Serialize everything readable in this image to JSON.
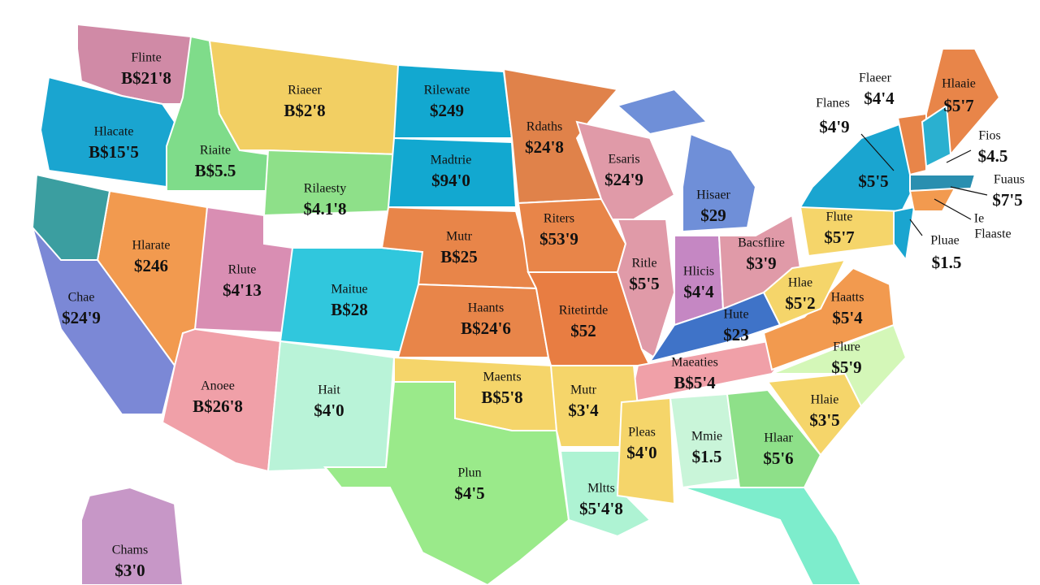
{
  "states": [
    {
      "name": "Flinte",
      "value": "B$21'8"
    },
    {
      "name": "Hlacate",
      "value": "B$15'5"
    },
    {
      "name": "Riaite",
      "value": "B$5.5"
    },
    {
      "name": "Riaeer",
      "value": "B$2'8"
    },
    {
      "name": "Rilaesty",
      "value": "$4.1'8"
    },
    {
      "name": "Rilewate",
      "value": "$249"
    },
    {
      "name": "Madtrie",
      "value": "$94'0"
    },
    {
      "name": "Rdaths",
      "value": "$24'8"
    },
    {
      "name": "Esaris",
      "value": "$24'9"
    },
    {
      "name": "Hisaer",
      "value": "$29"
    },
    {
      "name": "Hlarate",
      "value": "$246"
    },
    {
      "name": "Chae",
      "value": "$24'9"
    },
    {
      "name": "Rlute",
      "value": "$4'13"
    },
    {
      "name": "Maitue",
      "value": "B$28"
    },
    {
      "name": "Mutr",
      "value": "B$25"
    },
    {
      "name": "Riters",
      "value": "$53'9"
    },
    {
      "name": "Haants",
      "value": "B$24'6"
    },
    {
      "name": "Ritetirtde",
      "value": "$52"
    },
    {
      "name": "Ritle",
      "value": "$5'5"
    },
    {
      "name": "Hlicis",
      "value": "$4'4"
    },
    {
      "name": "Bacsflire",
      "value": "$3'9"
    },
    {
      "name": "Hute",
      "value": "$23"
    },
    {
      "name": "Anoee",
      "value": "B$26'8"
    },
    {
      "name": "Hait",
      "value": "$4'0"
    },
    {
      "name": "Maents",
      "value": "B$5'8"
    },
    {
      "name": "Mutr",
      "value": "$3'4"
    },
    {
      "name": "Maeaties",
      "value": "B$5'4"
    },
    {
      "name": "Pleas",
      "value": "$4'0"
    },
    {
      "name": "Mmie",
      "value": "$1.5"
    },
    {
      "name": "Hlaar",
      "value": "$5'6"
    },
    {
      "name": "Hlaie",
      "value": "$3'5"
    },
    {
      "name": "Flure",
      "value": "$5'9"
    },
    {
      "name": "Haatts",
      "value": "$5'4"
    },
    {
      "name": "Hlae",
      "value": "$5'2"
    },
    {
      "name": "Flute",
      "value": "$5'7"
    },
    {
      "name": "Plun",
      "value": "$4'5"
    },
    {
      "name": "Mltts",
      "value": "$5'4'8"
    },
    {
      "name": "Chams",
      "value": "$3'0"
    }
  ],
  "callouts": [
    "$5'5",
    "Flaeer",
    "Flanes",
    "$4'4",
    "$4'9",
    "Hlaaie",
    "$5'7",
    "Fios",
    "$4.5",
    "Fuaus",
    "$7'5",
    "Ie",
    "Pluae",
    "Flaaste",
    "$1.5"
  ]
}
